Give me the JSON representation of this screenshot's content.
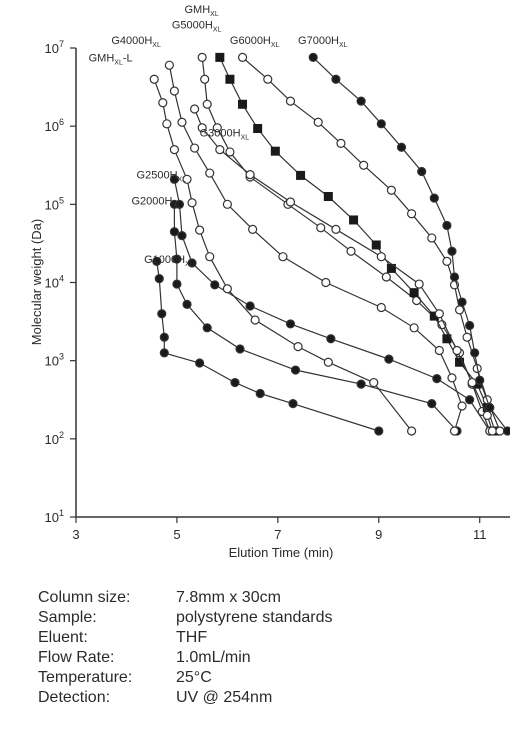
{
  "chart_data": {
    "type": "scatter",
    "title": "",
    "xlabel": "Elution Time (min)",
    "ylabel": "Molecular weight (Da)",
    "xlim": [
      3,
      11.6
    ],
    "ylim_log10": [
      1,
      7
    ],
    "xticks": [
      "3",
      "5",
      "7",
      "9",
      "11"
    ],
    "yticks": [
      {
        "base": "10",
        "exp": "1"
      },
      {
        "base": "10",
        "exp": "2"
      },
      {
        "base": "10",
        "exp": "3"
      },
      {
        "base": "10",
        "exp": "4"
      },
      {
        "base": "10",
        "exp": "5"
      },
      {
        "base": "10",
        "exp": "6"
      },
      {
        "base": "10",
        "exp": "7"
      }
    ],
    "grid": false,
    "marker_colors": {
      "filled": "#1a1a1a",
      "open": "#ffffff",
      "line": "#333333"
    },
    "series": [
      {
        "label_main": "G1000H",
        "label_sub": "XL",
        "marker": "filled-circle",
        "label_pos": [
          4.35,
          4.25
        ],
        "points": [
          [
            4.6,
            4.27
          ],
          [
            4.65,
            4.05
          ],
          [
            4.7,
            3.6
          ],
          [
            4.75,
            3.3
          ],
          [
            4.75,
            3.1
          ],
          [
            5.45,
            2.97
          ],
          [
            6.15,
            2.72
          ],
          [
            6.65,
            2.58
          ],
          [
            7.3,
            2.45
          ],
          [
            9.0,
            2.1
          ]
        ]
      },
      {
        "label_main": "G2000H",
        "label_sub": "XL",
        "marker": "filled-circle",
        "label_pos": [
          4.1,
          5.0
        ],
        "points": [
          [
            4.95,
            5.0
          ],
          [
            4.95,
            4.65
          ],
          [
            5.0,
            4.3
          ],
          [
            5.0,
            3.98
          ],
          [
            5.2,
            3.72
          ],
          [
            5.6,
            3.42
          ],
          [
            6.25,
            3.15
          ],
          [
            7.35,
            2.88
          ],
          [
            8.65,
            2.7
          ],
          [
            10.05,
            2.45
          ],
          [
            10.55,
            2.1
          ]
        ]
      },
      {
        "label_main": "G2500H",
        "label_sub": "XL",
        "marker": "filled-circle",
        "label_pos": [
          4.2,
          5.33
        ],
        "points": [
          [
            4.95,
            5.32
          ],
          [
            5.05,
            5.0
          ],
          [
            5.1,
            4.6
          ],
          [
            5.3,
            4.25
          ],
          [
            5.75,
            3.97
          ],
          [
            6.45,
            3.7
          ],
          [
            7.25,
            3.47
          ],
          [
            8.05,
            3.28
          ],
          [
            9.2,
            3.02
          ],
          [
            10.15,
            2.77
          ],
          [
            10.8,
            2.5
          ],
          [
            11.2,
            2.1
          ]
        ]
      },
      {
        "label_main": "GMH",
        "label_sub": "XL",
        "label_suffix": "-L",
        "marker": "open-circle",
        "label_pos": [
          3.25,
          6.83
        ],
        "points": [
          [
            4.55,
            6.6
          ],
          [
            4.72,
            6.3
          ],
          [
            4.8,
            6.03
          ],
          [
            4.95,
            5.7
          ],
          [
            5.2,
            5.32
          ],
          [
            5.3,
            5.02
          ],
          [
            5.45,
            4.67
          ],
          [
            5.65,
            4.33
          ],
          [
            6.0,
            3.92
          ],
          [
            6.55,
            3.52
          ],
          [
            7.4,
            3.18
          ],
          [
            8.0,
            2.98
          ],
          [
            8.9,
            2.72
          ],
          [
            9.65,
            2.1
          ]
        ]
      },
      {
        "label_main": "G4000H",
        "label_sub": "XL",
        "marker": "open-circle",
        "label_pos": [
          3.7,
          7.05
        ],
        "points": [
          [
            4.85,
            6.78
          ],
          [
            4.95,
            6.45
          ],
          [
            5.1,
            6.05
          ],
          [
            5.35,
            5.72
          ],
          [
            5.65,
            5.4
          ],
          [
            6.0,
            5.0
          ],
          [
            6.5,
            4.68
          ],
          [
            7.1,
            4.33
          ],
          [
            7.95,
            4.0
          ],
          [
            9.05,
            3.68
          ],
          [
            9.7,
            3.42
          ],
          [
            10.2,
            3.13
          ],
          [
            10.45,
            2.78
          ],
          [
            10.65,
            2.42
          ],
          [
            10.5,
            2.1
          ]
        ]
      },
      {
        "label_main": "G5000H",
        "label_sub": "XL",
        "marker": "open-circle",
        "label_pos": [
          4.9,
          7.25
        ],
        "points": [
          [
            5.5,
            6.88
          ],
          [
            5.55,
            6.6
          ],
          [
            5.6,
            6.28
          ],
          [
            5.8,
            5.98
          ],
          [
            6.05,
            5.67
          ],
          [
            6.45,
            5.35
          ],
          [
            7.2,
            5.0
          ],
          [
            7.85,
            4.7
          ],
          [
            8.45,
            4.4
          ],
          [
            9.15,
            4.07
          ],
          [
            9.75,
            3.77
          ],
          [
            10.25,
            3.46
          ],
          [
            10.6,
            3.1
          ],
          [
            10.85,
            2.7
          ],
          [
            11.05,
            2.35
          ],
          [
            11.2,
            2.1
          ]
        ]
      },
      {
        "label_main": "GMH",
        "label_sub": "XL",
        "marker": "filled-square",
        "label_pos": [
          5.15,
          7.45
        ],
        "points": [
          [
            5.85,
            6.88
          ],
          [
            6.05,
            6.6
          ],
          [
            6.3,
            6.28
          ],
          [
            6.6,
            5.97
          ],
          [
            6.95,
            5.68
          ],
          [
            7.45,
            5.37
          ],
          [
            8.0,
            5.1
          ],
          [
            8.5,
            4.8
          ],
          [
            8.95,
            4.48
          ],
          [
            9.25,
            4.18
          ],
          [
            9.7,
            3.87
          ],
          [
            10.1,
            3.57
          ],
          [
            10.35,
            3.28
          ],
          [
            10.6,
            2.98
          ],
          [
            10.95,
            2.7
          ],
          [
            11.15,
            2.4
          ],
          [
            11.3,
            2.1
          ]
        ]
      },
      {
        "label_main": "G3000H",
        "label_sub": "XL",
        "marker": "open-circle",
        "label_pos": [
          5.45,
          5.87
        ],
        "points": [
          [
            5.35,
            6.22
          ],
          [
            5.5,
            5.98
          ],
          [
            5.85,
            5.7
          ],
          [
            6.45,
            5.38
          ],
          [
            7.25,
            5.03
          ],
          [
            8.15,
            4.68
          ],
          [
            9.05,
            4.33
          ],
          [
            9.8,
            3.98
          ],
          [
            10.2,
            3.6
          ],
          [
            10.55,
            3.13
          ],
          [
            10.85,
            2.72
          ],
          [
            11.15,
            2.3
          ],
          [
            11.25,
            2.1
          ]
        ]
      },
      {
        "label_main": "G6000H",
        "label_sub": "XL",
        "marker": "open-circle",
        "label_pos": [
          6.05,
          7.05
        ],
        "points": [
          [
            6.3,
            6.88
          ],
          [
            6.8,
            6.6
          ],
          [
            7.25,
            6.32
          ],
          [
            7.8,
            6.05
          ],
          [
            8.25,
            5.78
          ],
          [
            8.7,
            5.5
          ],
          [
            9.25,
            5.18
          ],
          [
            9.65,
            4.88
          ],
          [
            10.05,
            4.57
          ],
          [
            10.35,
            4.27
          ],
          [
            10.5,
            3.97
          ],
          [
            10.6,
            3.65
          ],
          [
            10.75,
            3.3
          ],
          [
            10.95,
            2.9
          ],
          [
            11.15,
            2.5
          ],
          [
            11.4,
            2.1
          ]
        ]
      },
      {
        "label_main": "G7000H",
        "label_sub": "XL",
        "marker": "filled-circle",
        "label_pos": [
          7.4,
          7.05
        ],
        "points": [
          [
            7.7,
            6.88
          ],
          [
            8.15,
            6.6
          ],
          [
            8.65,
            6.32
          ],
          [
            9.05,
            6.03
          ],
          [
            9.45,
            5.73
          ],
          [
            9.85,
            5.42
          ],
          [
            10.1,
            5.08
          ],
          [
            10.35,
            4.73
          ],
          [
            10.45,
            4.4
          ],
          [
            10.5,
            4.07
          ],
          [
            10.65,
            3.75
          ],
          [
            10.8,
            3.45
          ],
          [
            10.9,
            3.1
          ],
          [
            11.0,
            2.75
          ],
          [
            11.2,
            2.4
          ],
          [
            11.55,
            2.1
          ]
        ]
      }
    ]
  },
  "conditions": [
    {
      "label": "Column size:",
      "value": "7.8mm x 30cm"
    },
    {
      "label": "Sample:",
      "value": "polystyrene standards"
    },
    {
      "label": "Eluent:",
      "value": "THF"
    },
    {
      "label": "Flow Rate:",
      "value": "1.0mL/min"
    },
    {
      "label": "Temperature:",
      "value": "25°C"
    },
    {
      "label": "Detection:",
      "value": "UV @ 254nm"
    }
  ]
}
